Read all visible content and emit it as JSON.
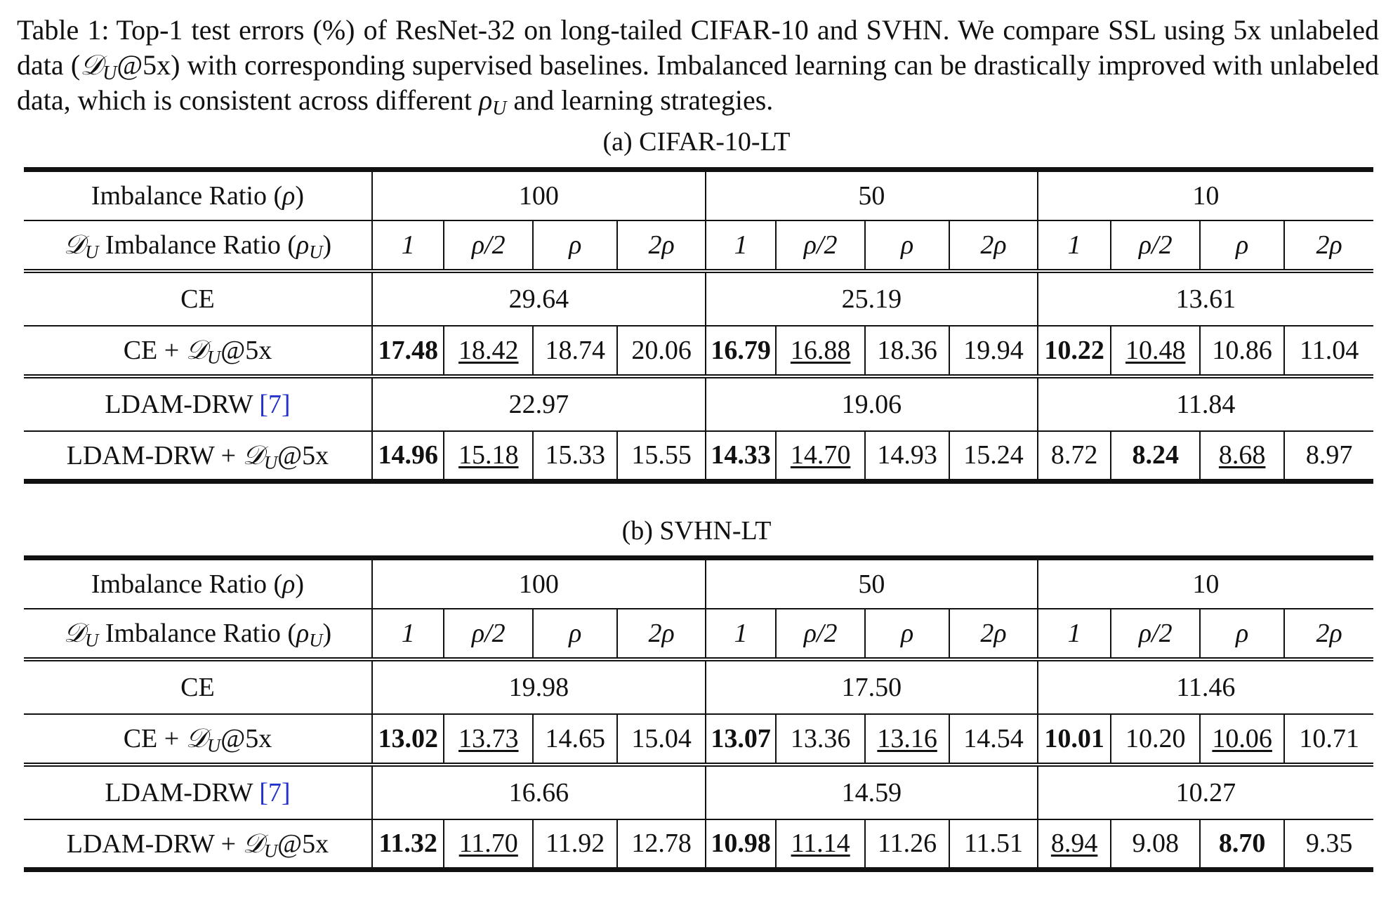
{
  "caption": {
    "label": "Table 1:",
    "text": "Top-1 test errors (%) of ResNet-32 on long-tailed CIFAR-10 and SVHN. We compare SSL using 5x unlabeled data (𝒟U@5x) with corresponding supervised baselines. Imbalanced learning can be drastically improved with unlabeled data, which is consistent across different ρU and learning strategies."
  },
  "headers": {
    "imbalance_ratio": "Imbalance Ratio (ρ)",
    "du_imbalance_ratio": "𝒟U Imbalance Ratio (ρU)",
    "rho_values": [
      "100",
      "50",
      "10"
    ],
    "rho_u_values": [
      "1",
      "ρ/2",
      "ρ",
      "2ρ"
    ]
  },
  "tables": [
    {
      "subtitle": "(a) CIFAR-10-LT",
      "rows": [
        {
          "label": "CE",
          "baseline": [
            "29.64",
            "25.19",
            "13.61"
          ]
        },
        {
          "label": "CE + 𝒟U@5x",
          "values": [
            {
              "v": "17.48",
              "s": "b"
            },
            {
              "v": "18.42",
              "s": "u"
            },
            {
              "v": "18.74"
            },
            {
              "v": "20.06"
            },
            {
              "v": "16.79",
              "s": "b"
            },
            {
              "v": "16.88",
              "s": "u"
            },
            {
              "v": "18.36"
            },
            {
              "v": "19.94"
            },
            {
              "v": "10.22",
              "s": "b"
            },
            {
              "v": "10.48",
              "s": "u"
            },
            {
              "v": "10.86"
            },
            {
              "v": "11.04"
            }
          ]
        },
        {
          "label": "LDAM-DRW [7]",
          "baseline": [
            "22.97",
            "19.06",
            "11.84"
          ]
        },
        {
          "label": "LDAM-DRW + 𝒟U@5x",
          "values": [
            {
              "v": "14.96",
              "s": "b"
            },
            {
              "v": "15.18",
              "s": "u"
            },
            {
              "v": "15.33"
            },
            {
              "v": "15.55"
            },
            {
              "v": "14.33",
              "s": "b"
            },
            {
              "v": "14.70",
              "s": "u"
            },
            {
              "v": "14.93"
            },
            {
              "v": "15.24"
            },
            {
              "v": "8.72"
            },
            {
              "v": "8.24",
              "s": "b"
            },
            {
              "v": "8.68",
              "s": "u"
            },
            {
              "v": "8.97"
            }
          ]
        }
      ]
    },
    {
      "subtitle": "(b) SVHN-LT",
      "rows": [
        {
          "label": "CE",
          "baseline": [
            "19.98",
            "17.50",
            "11.46"
          ]
        },
        {
          "label": "CE + 𝒟U@5x",
          "values": [
            {
              "v": "13.02",
              "s": "b"
            },
            {
              "v": "13.73",
              "s": "u"
            },
            {
              "v": "14.65"
            },
            {
              "v": "15.04"
            },
            {
              "v": "13.07",
              "s": "b"
            },
            {
              "v": "13.36"
            },
            {
              "v": "13.16",
              "s": "u"
            },
            {
              "v": "14.54"
            },
            {
              "v": "10.01",
              "s": "b"
            },
            {
              "v": "10.20"
            },
            {
              "v": "10.06",
              "s": "u"
            },
            {
              "v": "10.71"
            }
          ]
        },
        {
          "label": "LDAM-DRW [7]",
          "baseline": [
            "16.66",
            "14.59",
            "10.27"
          ]
        },
        {
          "label": "LDAM-DRW + 𝒟U@5x",
          "values": [
            {
              "v": "11.32",
              "s": "b"
            },
            {
              "v": "11.70",
              "s": "u"
            },
            {
              "v": "11.92"
            },
            {
              "v": "12.78"
            },
            {
              "v": "10.98",
              "s": "b"
            },
            {
              "v": "11.14",
              "s": "u"
            },
            {
              "v": "11.26"
            },
            {
              "v": "11.51"
            },
            {
              "v": "8.94",
              "s": "u"
            },
            {
              "v": "9.08"
            },
            {
              "v": "8.70",
              "s": "b"
            },
            {
              "v": "9.35"
            }
          ]
        }
      ]
    }
  ]
}
